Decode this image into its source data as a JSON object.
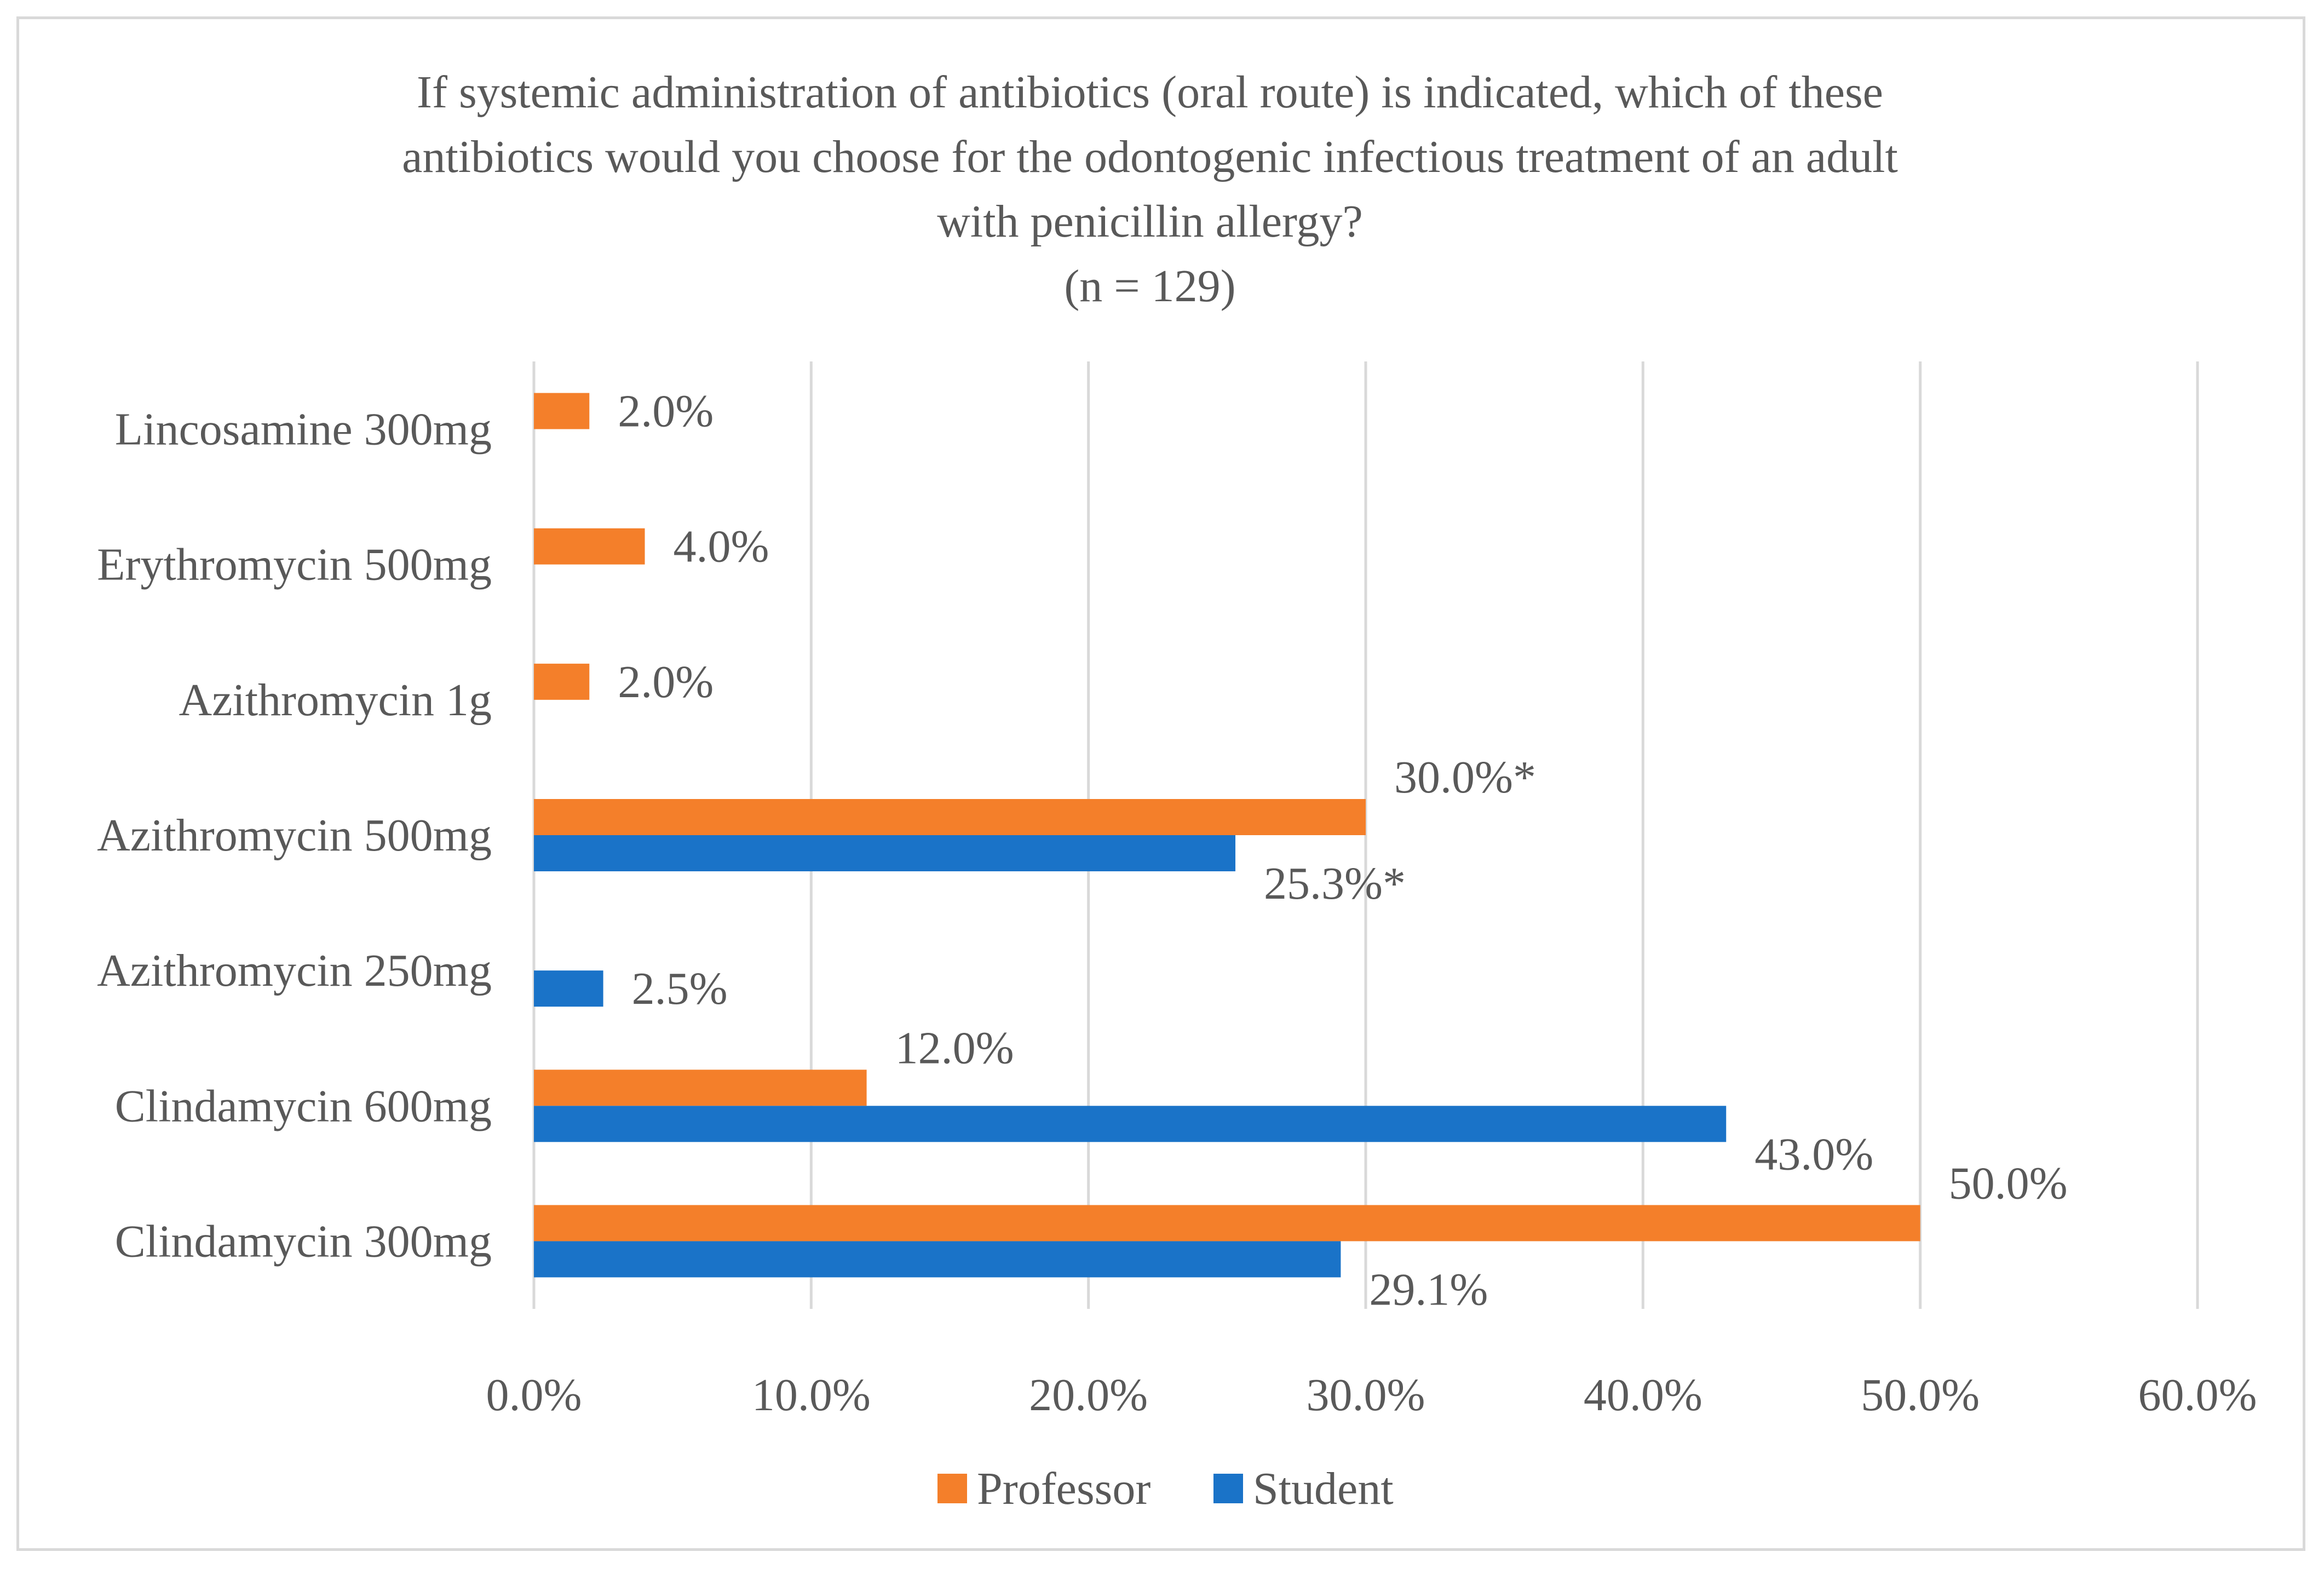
{
  "chart_data": {
    "type": "bar",
    "orientation": "horizontal",
    "title_lines": [
      "If systemic administration of antibiotics (oral route) is indicated, which of these",
      "antibiotics would you choose for the odontogenic infectious treatment of an adult",
      "with penicillin allergy?",
      "(n = 129)"
    ],
    "categories": [
      "Clindamycin 300mg",
      "Clindamycin 600mg",
      "Azithromycin 250mg",
      "Azithromycin 500mg",
      "Azithromycin 1g",
      "Erythromycin 500mg",
      "Lincosamine 300mg"
    ],
    "series": [
      {
        "name": "Professor",
        "color": "#f47f2a",
        "values": [
          50.0,
          12.0,
          null,
          30.0,
          2.0,
          4.0,
          2.0
        ],
        "labels": [
          "50.0%",
          "12.0%",
          "",
          "30.0%*",
          "2.0%",
          "4.0%",
          "2.0%"
        ]
      },
      {
        "name": "Student",
        "color": "#1a73c8",
        "values": [
          29.1,
          43.0,
          2.5,
          25.3,
          null,
          null,
          null
        ],
        "labels": [
          "29.1%",
          "43.0%",
          "2.5%",
          "25.3%*",
          "",
          "",
          ""
        ]
      }
    ],
    "x_ticks": [
      "0.0%",
      "10.0%",
      "20.0%",
      "30.0%",
      "40.0%",
      "50.0%",
      "60.0%"
    ],
    "xlim": [
      0,
      60
    ],
    "grid": "vertical",
    "legend_position": "bottom"
  }
}
